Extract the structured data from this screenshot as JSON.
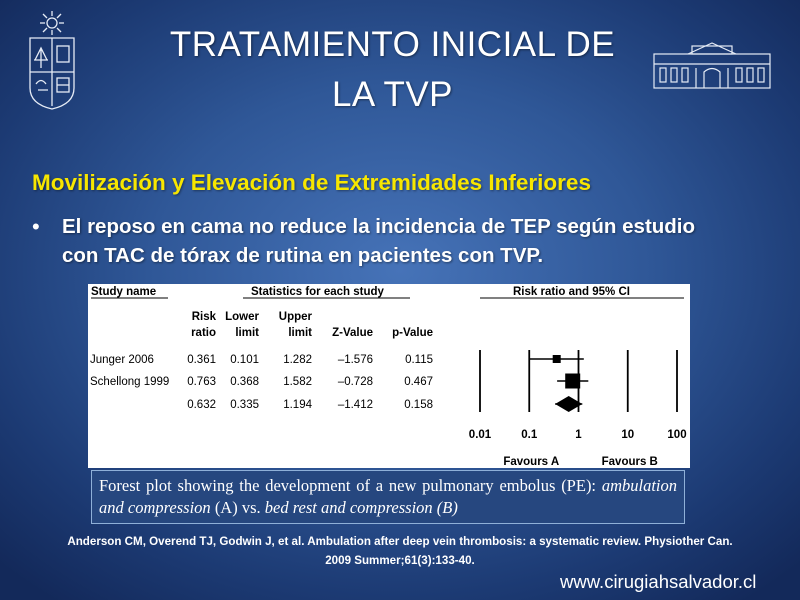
{
  "slide": {
    "title_lines": [
      "TRATAMIENTO INICIAL DE",
      "LA TVP"
    ],
    "subtitle": "Movilización y Elevación de Extremidades Inferiores",
    "bullet_lines": [
      "El reposo en cama no reduce la incidencia de TEP según estudio",
      "con TAC de tórax de rutina en pacientes con TVP."
    ],
    "caption": {
      "part1": "Forest plot showing the development of a new pulmonary embolus (PE): ",
      "part2": "ambulation and compression",
      "part3": " (A) vs. ",
      "part4": "bed rest and compression (B)"
    },
    "reference_lines": [
      "Anderson CM, Overend TJ, Godwin J, et al. Ambulation after deep vein thrombosis: a systematic review. Physiother Can.",
      "2009 Summer;61(3):133-40."
    ],
    "website": "www.cirugiahsalvador.cl"
  },
  "chart_data": {
    "type": "table",
    "headers": {
      "study": "Study name",
      "stats_group": "Statistics for each study",
      "plot_group": "Risk ratio and 95% CI",
      "columns": [
        [
          "Risk",
          "ratio"
        ],
        [
          "Lower",
          "limit"
        ],
        [
          "Upper",
          "limit"
        ],
        [
          "",
          "Z-Value"
        ],
        [
          "",
          "p-Value"
        ]
      ]
    },
    "rows": [
      {
        "study": "Junger 2006",
        "values": [
          "0.361",
          "0.101",
          "1.282",
          "–1.576",
          "0.115"
        ],
        "rr": 0.361,
        "lower": 0.101,
        "upper": 1.282,
        "marker": "square",
        "marker_size": "small"
      },
      {
        "study": "Schellong 1999",
        "values": [
          "0.763",
          "0.368",
          "1.582",
          "–0.728",
          "0.467"
        ],
        "rr": 0.763,
        "lower": 0.368,
        "upper": 1.582,
        "marker": "square",
        "marker_size": "large"
      },
      {
        "study": "",
        "values": [
          "0.632",
          "0.335",
          "1.194",
          "–1.412",
          "0.158"
        ],
        "rr": 0.632,
        "lower": 0.335,
        "upper": 1.194,
        "marker": "diamond"
      }
    ],
    "x_scale": "log",
    "x_ticks": [
      0.01,
      0.1,
      1,
      10,
      100
    ],
    "x_tick_labels": [
      "0.01",
      "0.1",
      "1",
      "10",
      "100"
    ],
    "favours_left": "Favours A",
    "favours_right": "Favours B"
  }
}
